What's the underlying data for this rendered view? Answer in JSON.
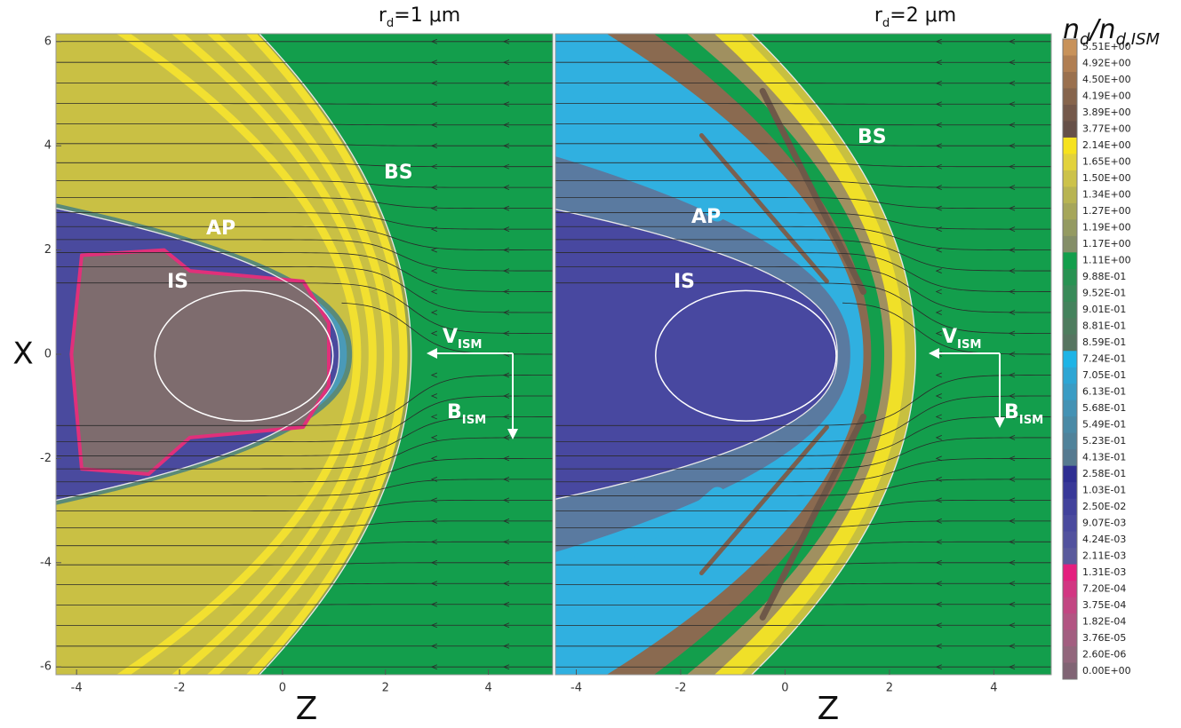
{
  "chart_data": [
    {
      "type": "contour",
      "title": {
        "base": "r",
        "sub": "d",
        "rest": "=1 μm"
      },
      "xlabel": "Z",
      "ylabel": "X",
      "xlim": [
        -4.4,
        5.25
      ],
      "ylim": [
        -6.15,
        6.15
      ],
      "xticks": [
        -4,
        -2,
        0,
        2,
        4
      ],
      "yticks": [
        6,
        4,
        2,
        0,
        -2,
        -4,
        -6
      ],
      "annotations": {
        "bs": "BS",
        "ap": "AP",
        "is": "IS",
        "v": {
          "base": "V",
          "sub": "ISM"
        },
        "b": {
          "base": "B",
          "sub": "ISM"
        }
      }
    },
    {
      "type": "contour",
      "title": {
        "base": "r",
        "sub": "d",
        "rest": "=2 μm"
      },
      "xlabel": "Z",
      "xlim": [
        -4.4,
        5.1
      ],
      "ylim": [
        -6.15,
        6.15
      ],
      "xticks": [
        -4,
        -2,
        0,
        2,
        4
      ],
      "annotations": {
        "bs": "BS",
        "ap": "AP",
        "is": "IS",
        "v": {
          "base": "V",
          "sub": "ISM"
        },
        "b": {
          "base": "B",
          "sub": "ISM"
        }
      }
    },
    {
      "type": "colorbar",
      "title": {
        "n1": "n",
        "sub1": "d",
        "n2": "/n",
        "sub2": "d,ISM"
      },
      "levels": [
        {
          "value": 5.51,
          "label": "5.51E+00"
        },
        {
          "value": 4.92,
          "label": "4.92E+00"
        },
        {
          "value": 4.5,
          "label": "4.50E+00"
        },
        {
          "value": 4.19,
          "label": "4.19E+00"
        },
        {
          "value": 3.89,
          "label": "3.89E+00"
        },
        {
          "value": 3.77,
          "label": "3.77E+00"
        },
        {
          "value": 2.14,
          "label": "2.14E+00"
        },
        {
          "value": 1.65,
          "label": "1.65E+00"
        },
        {
          "value": 1.5,
          "label": "1.50E+00"
        },
        {
          "value": 1.34,
          "label": "1.34E+00"
        },
        {
          "value": 1.27,
          "label": "1.27E+00"
        },
        {
          "value": 1.19,
          "label": "1.19E+00"
        },
        {
          "value": 1.17,
          "label": "1.17E+00"
        },
        {
          "value": 1.11,
          "label": "1.11E+00"
        },
        {
          "value": 0.988,
          "label": "9.88E-01"
        },
        {
          "value": 0.952,
          "label": "9.52E-01"
        },
        {
          "value": 0.901,
          "label": "9.01E-01"
        },
        {
          "value": 0.881,
          "label": "8.81E-01"
        },
        {
          "value": 0.859,
          "label": "8.59E-01"
        },
        {
          "value": 0.724,
          "label": "7.24E-01"
        },
        {
          "value": 0.705,
          "label": "7.05E-01"
        },
        {
          "value": 0.613,
          "label": "6.13E-01"
        },
        {
          "value": 0.568,
          "label": "5.68E-01"
        },
        {
          "value": 0.549,
          "label": "5.49E-01"
        },
        {
          "value": 0.523,
          "label": "5.23E-01"
        },
        {
          "value": 0.413,
          "label": "4.13E-01"
        },
        {
          "value": 0.258,
          "label": "2.58E-01"
        },
        {
          "value": 0.103,
          "label": "1.03E-01"
        },
        {
          "value": 0.025,
          "label": "2.50E-02"
        },
        {
          "value": 0.00907,
          "label": "9.07E-03"
        },
        {
          "value": 0.00424,
          "label": "4.24E-03"
        },
        {
          "value": 0.00211,
          "label": "2.11E-03"
        },
        {
          "value": 0.00131,
          "label": "1.31E-03"
        },
        {
          "value": 0.00072,
          "label": "7.20E-04"
        },
        {
          "value": 0.000375,
          "label": "3.75E-04"
        },
        {
          "value": 0.000182,
          "label": "1.82E-04"
        },
        {
          "value": 3.76e-05,
          "label": "3.76E-05"
        },
        {
          "value": 2.6e-06,
          "label": "2.60E-06"
        },
        {
          "value": 0,
          "label": "0.00E+00"
        }
      ],
      "colors": [
        "#c8925a",
        "#b07e52",
        "#9a704e",
        "#86644c",
        "#74584a",
        "#665048",
        "#f6e21e",
        "#e2d23c",
        "#ccc24a",
        "#b8b452",
        "#a6a65a",
        "#949a62",
        "#848e68",
        "#139e4c",
        "#289252",
        "#388a58",
        "#44825c",
        "#4e7c5e",
        "#567460",
        "#1eb4e6",
        "#2ea6d4",
        "#3a9cc4",
        "#4492b4",
        "#4a8aa6",
        "#50829a",
        "#567a90",
        "#2e2e92",
        "#383898",
        "#42429c",
        "#4a4a9e",
        "#52529e",
        "#5a5a9c",
        "#e41e7e",
        "#d23682",
        "#c24682",
        "#b25482",
        "#a25e80",
        "#92667c",
        "#806474"
      ]
    }
  ]
}
